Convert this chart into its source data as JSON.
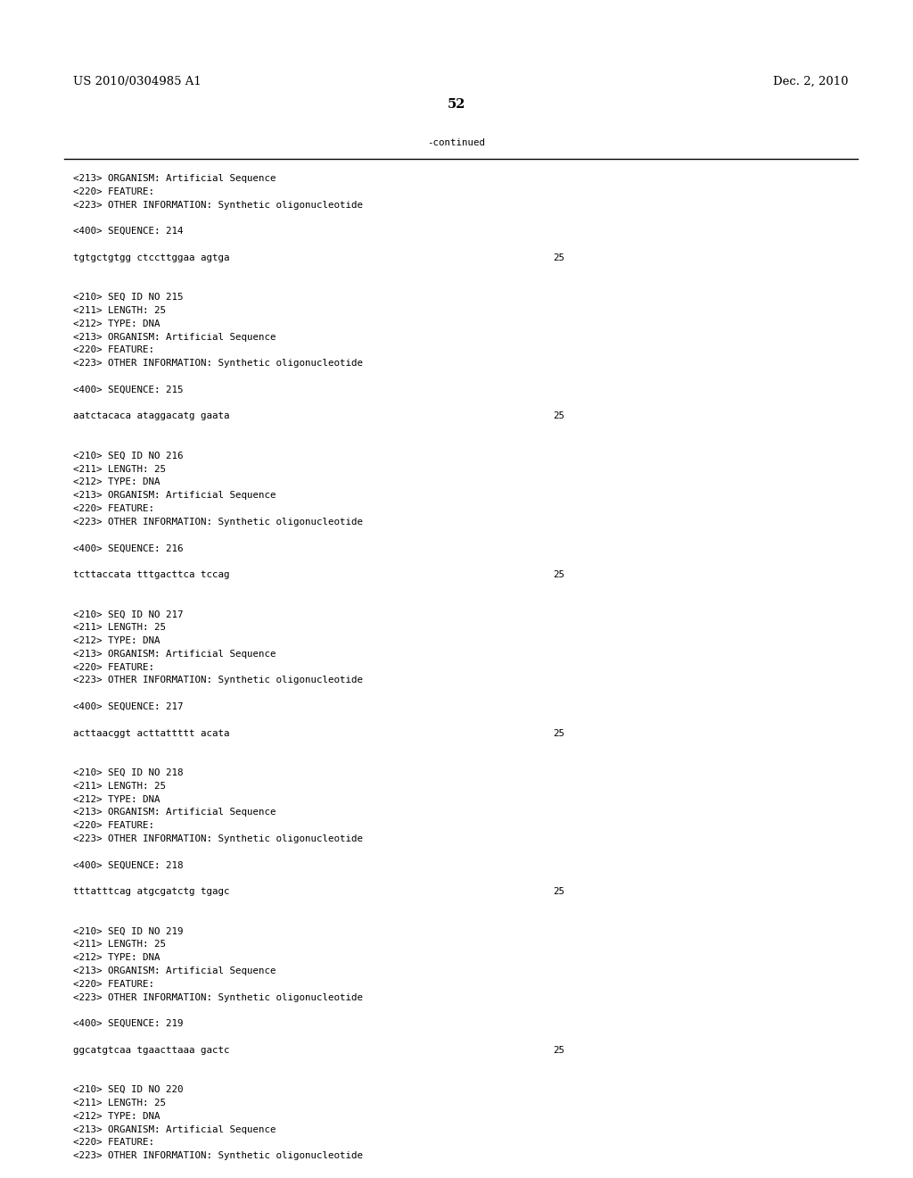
{
  "background_color": "#ffffff",
  "header_left": "US 2010/0304985 A1",
  "header_right": "Dec. 2, 2010",
  "page_number": "52",
  "continued_text": "-continued",
  "font_size_header": 9.5,
  "font_size_mono": 7.8,
  "font_size_page": 10.5,
  "content_lines": [
    {
      "text": "<213> ORGANISM: Artificial Sequence",
      "type": "meta"
    },
    {
      "text": "<220> FEATURE:",
      "type": "meta"
    },
    {
      "text": "<223> OTHER INFORMATION: Synthetic oligonucleotide",
      "type": "meta"
    },
    {
      "text": "",
      "type": "blank"
    },
    {
      "text": "<400> SEQUENCE: 214",
      "type": "meta"
    },
    {
      "text": "",
      "type": "blank"
    },
    {
      "text": "tgtgctgtgg ctccttggaa agtga",
      "type": "seq",
      "num": "25"
    },
    {
      "text": "",
      "type": "blank"
    },
    {
      "text": "",
      "type": "blank"
    },
    {
      "text": "<210> SEQ ID NO 215",
      "type": "meta"
    },
    {
      "text": "<211> LENGTH: 25",
      "type": "meta"
    },
    {
      "text": "<212> TYPE: DNA",
      "type": "meta"
    },
    {
      "text": "<213> ORGANISM: Artificial Sequence",
      "type": "meta"
    },
    {
      "text": "<220> FEATURE:",
      "type": "meta"
    },
    {
      "text": "<223> OTHER INFORMATION: Synthetic oligonucleotide",
      "type": "meta"
    },
    {
      "text": "",
      "type": "blank"
    },
    {
      "text": "<400> SEQUENCE: 215",
      "type": "meta"
    },
    {
      "text": "",
      "type": "blank"
    },
    {
      "text": "aatctacaca ataggacatg gaata",
      "type": "seq",
      "num": "25"
    },
    {
      "text": "",
      "type": "blank"
    },
    {
      "text": "",
      "type": "blank"
    },
    {
      "text": "<210> SEQ ID NO 216",
      "type": "meta"
    },
    {
      "text": "<211> LENGTH: 25",
      "type": "meta"
    },
    {
      "text": "<212> TYPE: DNA",
      "type": "meta"
    },
    {
      "text": "<213> ORGANISM: Artificial Sequence",
      "type": "meta"
    },
    {
      "text": "<220> FEATURE:",
      "type": "meta"
    },
    {
      "text": "<223> OTHER INFORMATION: Synthetic oligonucleotide",
      "type": "meta"
    },
    {
      "text": "",
      "type": "blank"
    },
    {
      "text": "<400> SEQUENCE: 216",
      "type": "meta"
    },
    {
      "text": "",
      "type": "blank"
    },
    {
      "text": "tcttaccata tttgacttca tccag",
      "type": "seq",
      "num": "25"
    },
    {
      "text": "",
      "type": "blank"
    },
    {
      "text": "",
      "type": "blank"
    },
    {
      "text": "<210> SEQ ID NO 217",
      "type": "meta"
    },
    {
      "text": "<211> LENGTH: 25",
      "type": "meta"
    },
    {
      "text": "<212> TYPE: DNA",
      "type": "meta"
    },
    {
      "text": "<213> ORGANISM: Artificial Sequence",
      "type": "meta"
    },
    {
      "text": "<220> FEATURE:",
      "type": "meta"
    },
    {
      "text": "<223> OTHER INFORMATION: Synthetic oligonucleotide",
      "type": "meta"
    },
    {
      "text": "",
      "type": "blank"
    },
    {
      "text": "<400> SEQUENCE: 217",
      "type": "meta"
    },
    {
      "text": "",
      "type": "blank"
    },
    {
      "text": "acttaacggt acttattttt acata",
      "type": "seq",
      "num": "25"
    },
    {
      "text": "",
      "type": "blank"
    },
    {
      "text": "",
      "type": "blank"
    },
    {
      "text": "<210> SEQ ID NO 218",
      "type": "meta"
    },
    {
      "text": "<211> LENGTH: 25",
      "type": "meta"
    },
    {
      "text": "<212> TYPE: DNA",
      "type": "meta"
    },
    {
      "text": "<213> ORGANISM: Artificial Sequence",
      "type": "meta"
    },
    {
      "text": "<220> FEATURE:",
      "type": "meta"
    },
    {
      "text": "<223> OTHER INFORMATION: Synthetic oligonucleotide",
      "type": "meta"
    },
    {
      "text": "",
      "type": "blank"
    },
    {
      "text": "<400> SEQUENCE: 218",
      "type": "meta"
    },
    {
      "text": "",
      "type": "blank"
    },
    {
      "text": "tttatttcag atgcgatctg tgagc",
      "type": "seq",
      "num": "25"
    },
    {
      "text": "",
      "type": "blank"
    },
    {
      "text": "",
      "type": "blank"
    },
    {
      "text": "<210> SEQ ID NO 219",
      "type": "meta"
    },
    {
      "text": "<211> LENGTH: 25",
      "type": "meta"
    },
    {
      "text": "<212> TYPE: DNA",
      "type": "meta"
    },
    {
      "text": "<213> ORGANISM: Artificial Sequence",
      "type": "meta"
    },
    {
      "text": "<220> FEATURE:",
      "type": "meta"
    },
    {
      "text": "<223> OTHER INFORMATION: Synthetic oligonucleotide",
      "type": "meta"
    },
    {
      "text": "",
      "type": "blank"
    },
    {
      "text": "<400> SEQUENCE: 219",
      "type": "meta"
    },
    {
      "text": "",
      "type": "blank"
    },
    {
      "text": "ggcatgtcaa tgaacttaaa gactc",
      "type": "seq",
      "num": "25"
    },
    {
      "text": "",
      "type": "blank"
    },
    {
      "text": "",
      "type": "blank"
    },
    {
      "text": "<210> SEQ ID NO 220",
      "type": "meta"
    },
    {
      "text": "<211> LENGTH: 25",
      "type": "meta"
    },
    {
      "text": "<212> TYPE: DNA",
      "type": "meta"
    },
    {
      "text": "<213> ORGANISM: Artificial Sequence",
      "type": "meta"
    },
    {
      "text": "<220> FEATURE:",
      "type": "meta"
    },
    {
      "text": "<223> OTHER INFORMATION: Synthetic oligonucleotide",
      "type": "meta"
    }
  ]
}
